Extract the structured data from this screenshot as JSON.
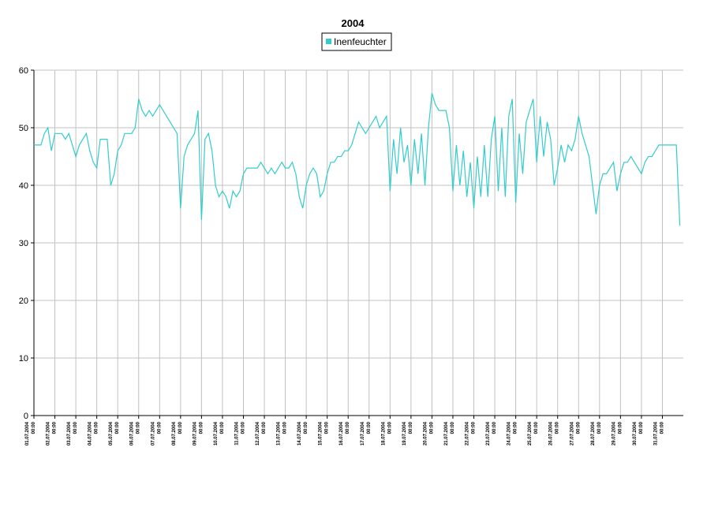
{
  "chart_data": {
    "type": "line",
    "title": "2004",
    "x": [
      "01.07.2004 00:00",
      "01.07.2004 04:00",
      "01.07.2004 08:00",
      "01.07.2004 12:00",
      "01.07.2004 16:00",
      "01.07.2004 20:00",
      "02.07.2004 00:00",
      "02.07.2004 04:00",
      "02.07.2004 08:00",
      "02.07.2004 12:00",
      "02.07.2004 16:00",
      "02.07.2004 20:00",
      "03.07.2004 00:00",
      "03.07.2004 04:00",
      "03.07.2004 08:00",
      "03.07.2004 12:00",
      "03.07.2004 16:00",
      "03.07.2004 20:00",
      "04.07.2004 00:00",
      "04.07.2004 04:00",
      "04.07.2004 08:00",
      "04.07.2004 12:00",
      "04.07.2004 16:00",
      "04.07.2004 20:00",
      "05.07.2004 00:00",
      "05.07.2004 04:00",
      "05.07.2004 08:00",
      "05.07.2004 12:00",
      "05.07.2004 16:00",
      "05.07.2004 20:00",
      "06.07.2004 00:00",
      "06.07.2004 04:00",
      "06.07.2004 08:00",
      "06.07.2004 12:00",
      "06.07.2004 16:00",
      "06.07.2004 20:00",
      "07.07.2004 00:00",
      "07.07.2004 04:00",
      "07.07.2004 08:00",
      "07.07.2004 12:00",
      "07.07.2004 16:00",
      "07.07.2004 20:00",
      "08.07.2004 00:00",
      "08.07.2004 04:00",
      "08.07.2004 08:00",
      "08.07.2004 12:00",
      "08.07.2004 16:00",
      "08.07.2004 20:00",
      "09.07.2004 00:00",
      "09.07.2004 04:00",
      "09.07.2004 08:00",
      "09.07.2004 12:00",
      "09.07.2004 16:00",
      "09.07.2004 20:00",
      "10.07.2004 00:00",
      "10.07.2004 04:00",
      "10.07.2004 08:00",
      "10.07.2004 12:00",
      "10.07.2004 16:00",
      "10.07.2004 20:00",
      "11.07.2004 00:00",
      "11.07.2004 04:00",
      "11.07.2004 08:00",
      "11.07.2004 12:00",
      "11.07.2004 16:00",
      "11.07.2004 20:00",
      "12.07.2004 00:00",
      "12.07.2004 04:00",
      "12.07.2004 08:00",
      "12.07.2004 12:00",
      "12.07.2004 16:00",
      "12.07.2004 20:00",
      "13.07.2004 00:00",
      "13.07.2004 04:00",
      "13.07.2004 08:00",
      "13.07.2004 12:00",
      "13.07.2004 16:00",
      "13.07.2004 20:00",
      "14.07.2004 00:00",
      "14.07.2004 04:00",
      "14.07.2004 08:00",
      "14.07.2004 12:00",
      "14.07.2004 16:00",
      "14.07.2004 20:00",
      "15.07.2004 00:00",
      "15.07.2004 04:00",
      "15.07.2004 08:00",
      "15.07.2004 12:00",
      "15.07.2004 16:00",
      "15.07.2004 20:00",
      "16.07.2004 00:00",
      "16.07.2004 04:00",
      "16.07.2004 08:00",
      "16.07.2004 12:00",
      "16.07.2004 16:00",
      "16.07.2004 20:00",
      "17.07.2004 00:00",
      "17.07.2004 04:00",
      "17.07.2004 08:00",
      "17.07.2004 12:00",
      "17.07.2004 16:00",
      "17.07.2004 20:00",
      "18.07.2004 00:00",
      "18.07.2004 04:00",
      "18.07.2004 08:00",
      "18.07.2004 12:00",
      "18.07.2004 16:00",
      "18.07.2004 20:00",
      "19.07.2004 00:00",
      "19.07.2004 04:00",
      "19.07.2004 08:00",
      "19.07.2004 12:00",
      "19.07.2004 16:00",
      "19.07.2004 20:00",
      "20.07.2004 00:00",
      "20.07.2004 04:00",
      "20.07.2004 08:00",
      "20.07.2004 12:00",
      "20.07.2004 16:00",
      "20.07.2004 20:00",
      "21.07.2004 00:00",
      "21.07.2004 04:00",
      "21.07.2004 08:00",
      "21.07.2004 12:00",
      "21.07.2004 16:00",
      "21.07.2004 20:00",
      "22.07.2004 00:00",
      "22.07.2004 04:00",
      "22.07.2004 08:00",
      "22.07.2004 12:00",
      "22.07.2004 16:00",
      "22.07.2004 20:00",
      "23.07.2004 00:00",
      "23.07.2004 04:00",
      "23.07.2004 08:00",
      "23.07.2004 12:00",
      "23.07.2004 16:00",
      "23.07.2004 20:00",
      "24.07.2004 00:00",
      "24.07.2004 04:00",
      "24.07.2004 08:00",
      "24.07.2004 12:00",
      "24.07.2004 16:00",
      "24.07.2004 20:00",
      "25.07.2004 00:00",
      "25.07.2004 04:00",
      "25.07.2004 08:00",
      "25.07.2004 12:00",
      "25.07.2004 16:00",
      "25.07.2004 20:00",
      "26.07.2004 00:00",
      "26.07.2004 04:00",
      "26.07.2004 08:00",
      "26.07.2004 12:00",
      "26.07.2004 16:00",
      "26.07.2004 20:00",
      "27.07.2004 00:00",
      "27.07.2004 04:00",
      "27.07.2004 08:00",
      "27.07.2004 12:00",
      "27.07.2004 16:00",
      "27.07.2004 20:00",
      "28.07.2004 00:00",
      "28.07.2004 04:00",
      "28.07.2004 08:00",
      "28.07.2004 12:00",
      "28.07.2004 16:00",
      "28.07.2004 20:00",
      "29.07.2004 00:00",
      "29.07.2004 04:00",
      "29.07.2004 08:00",
      "29.07.2004 12:00",
      "29.07.2004 16:00",
      "29.07.2004 20:00",
      "30.07.2004 00:00",
      "30.07.2004 04:00",
      "30.07.2004 08:00",
      "30.07.2004 12:00",
      "30.07.2004 16:00",
      "30.07.2004 20:00",
      "31.07.2004 00:00",
      "31.07.2004 04:00",
      "31.07.2004 08:00",
      "31.07.2004 12:00",
      "31.07.2004 16:00",
      "31.07.2004 20:00"
    ],
    "series": [
      {
        "name": "Inenfeuchter",
        "color": "#33cccc",
        "values": [
          47,
          47,
          47,
          49,
          50,
          46,
          49,
          49,
          49,
          48,
          49,
          47,
          45,
          47,
          48,
          49,
          46,
          44,
          43,
          48,
          48,
          48,
          40,
          42,
          46,
          47,
          49,
          49,
          49,
          50,
          55,
          53,
          52,
          53,
          52,
          53,
          54,
          53,
          52,
          51,
          50,
          49,
          36,
          45,
          47,
          48,
          49,
          53,
          34,
          48,
          49,
          46,
          40,
          38,
          39,
          38,
          36,
          39,
          38,
          39,
          42,
          43,
          43,
          43,
          43,
          44,
          43,
          42,
          43,
          42,
          43,
          44,
          43,
          43,
          44,
          42,
          38,
          36,
          40,
          42,
          43,
          42,
          38,
          39,
          42,
          44,
          44,
          45,
          45,
          46,
          46,
          47,
          49,
          51,
          50,
          49,
          50,
          51,
          52,
          50,
          51,
          52,
          39,
          48,
          42,
          50,
          44,
          47,
          40,
          48,
          42,
          49,
          40,
          50,
          56,
          54,
          53,
          53,
          53,
          50,
          39,
          47,
          40,
          46,
          38,
          44,
          36,
          45,
          38,
          47,
          38,
          48,
          52,
          39,
          50,
          38,
          52,
          55,
          37,
          49,
          42,
          51,
          53,
          55,
          44,
          52,
          45,
          51,
          48,
          40,
          43,
          47,
          44,
          47,
          46,
          48,
          52,
          49,
          47,
          45,
          40,
          35,
          40,
          42,
          42,
          43,
          44,
          39,
          42,
          44,
          44,
          45,
          44,
          43,
          42,
          44,
          45,
          45,
          46,
          47,
          47,
          47,
          47,
          47,
          47,
          33
        ]
      }
    ],
    "xlim": [
      "01.07.2004 00:00",
      "01.08.2004 00:00"
    ],
    "xticks": [
      "01.07.2004 00:00",
      "02.07.2004 00:00",
      "03.07.2004 00:00",
      "04.07.2004 00:00",
      "05.07.2004 00:00",
      "06.07.2004 00:00",
      "07.07.2004 00:00",
      "08.07.2004 00:00",
      "09.07.2004 00:00",
      "10.07.2004 00:00",
      "11.07.2004 00:00",
      "12.07.2004 00:00",
      "13.07.2004 00:00",
      "14.07.2004 00:00",
      "15.07.2004 00:00",
      "16.07.2004 00:00",
      "17.07.2004 00:00",
      "18.07.2004 00:00",
      "19.07.2004 00:00",
      "20.07.2004 00:00",
      "21.07.2004 00:00",
      "22.07.2004 00:00",
      "23.07.2004 00:00",
      "24.07.2004 00:00",
      "25.07.2004 00:00",
      "26.07.2004 00:00",
      "27.07.2004 00:00",
      "28.07.2004 00:00",
      "29.07.2004 00:00",
      "30.07.2004 00:00",
      "31.07.2004 00:00"
    ],
    "ylim": [
      0,
      60
    ],
    "yticks": [
      0,
      10,
      20,
      30,
      40,
      50,
      60
    ],
    "grid": true,
    "legend": "top"
  }
}
